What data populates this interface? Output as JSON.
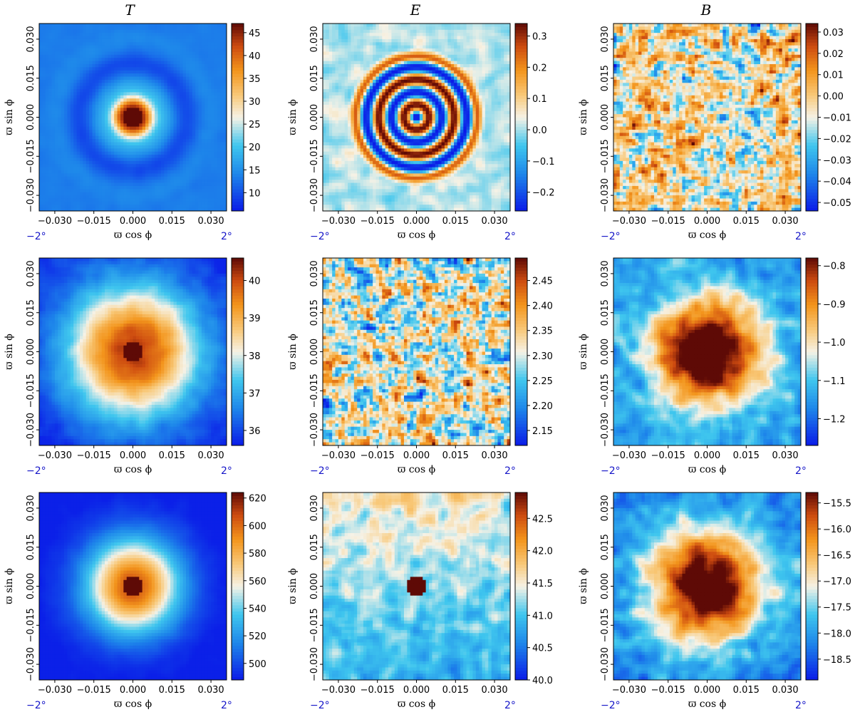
{
  "column_titles": [
    "T",
    "E",
    "B"
  ],
  "chart_data": [
    {
      "type": "heatmap",
      "column": "T",
      "row": 1,
      "pattern": "ring",
      "core_radius": 0.0035,
      "ring_radius": 0.02,
      "xlabel": "ϖ cos ϕ",
      "ylabel": "ϖ sin ϕ",
      "xlim": [
        -0.036,
        0.036
      ],
      "ylim": [
        -0.036,
        0.036
      ],
      "xticks": [
        "−0.030",
        "−0.015",
        "0.000",
        "0.015",
        "0.030"
      ],
      "yticks": [
        "−0.030",
        "−0.015",
        "0.000",
        "0.015",
        "0.030"
      ],
      "deg_left": "−2°",
      "deg_right": "2°",
      "clim": [
        6,
        47
      ],
      "cticks": [
        "10",
        "15",
        "20",
        "25",
        "30",
        "35",
        "40",
        "45"
      ]
    },
    {
      "type": "heatmap",
      "column": "E",
      "row": 1,
      "pattern": "rings",
      "ring_radius": 0.022,
      "xlabel": "ϖ cos ϕ",
      "ylabel": "ϖ sin ϕ",
      "xlim": [
        -0.036,
        0.036
      ],
      "ylim": [
        -0.036,
        0.036
      ],
      "xticks": [
        "−0.030",
        "−0.015",
        "0.000",
        "0.015",
        "0.030"
      ],
      "yticks": [
        "−0.030",
        "−0.015",
        "0.000",
        "0.015",
        "0.030"
      ],
      "deg_left": "−2°",
      "deg_right": "2°",
      "clim": [
        -0.26,
        0.34
      ],
      "cticks": [
        "−0.2",
        "−0.1",
        "0.0",
        "0.1",
        "0.2",
        "0.3"
      ]
    },
    {
      "type": "heatmap",
      "column": "B",
      "row": 1,
      "pattern": "noise",
      "xlabel": "ϖ cos ϕ",
      "ylabel": "ϖ sin ϕ",
      "xlim": [
        -0.036,
        0.036
      ],
      "ylim": [
        -0.036,
        0.036
      ],
      "xticks": [
        "−0.030",
        "−0.015",
        "0.000",
        "0.015",
        "0.030"
      ],
      "yticks": [
        "−0.030",
        "−0.015",
        "0.000",
        "0.015",
        "0.030"
      ],
      "deg_left": "−2°",
      "deg_right": "2°",
      "clim": [
        -0.054,
        0.034
      ],
      "cticks": [
        "−0.05",
        "−0.04",
        "−0.03",
        "−0.02",
        "−0.01",
        "0.00",
        "0.01",
        "0.02",
        "0.03"
      ]
    },
    {
      "type": "heatmap",
      "column": "T",
      "row": 2,
      "pattern": "blob_wide",
      "core_radius": 0.004,
      "xlabel": "ϖ cos ϕ",
      "ylabel": "ϖ sin ϕ",
      "xlim": [
        -0.036,
        0.036
      ],
      "ylim": [
        -0.036,
        0.036
      ],
      "xticks": [
        "−0.030",
        "−0.015",
        "0.000",
        "0.015",
        "0.030"
      ],
      "yticks": [
        "−0.030",
        "−0.015",
        "0.000",
        "0.015",
        "0.030"
      ],
      "deg_left": "−2°",
      "deg_right": "2°",
      "clim": [
        35.6,
        40.6
      ],
      "cticks": [
        "36",
        "37",
        "38",
        "39",
        "40"
      ]
    },
    {
      "type": "heatmap",
      "column": "E",
      "row": 2,
      "pattern": "noise",
      "xlabel": "ϖ cos ϕ",
      "ylabel": "ϖ sin ϕ",
      "xlim": [
        -0.036,
        0.036
      ],
      "ylim": [
        -0.036,
        0.036
      ],
      "xticks": [
        "−0.030",
        "−0.015",
        "0.000",
        "0.015",
        "0.030"
      ],
      "yticks": [
        "−0.030",
        "−0.015",
        "0.000",
        "0.015",
        "0.030"
      ],
      "deg_left": "−2°",
      "deg_right": "2°",
      "clim": [
        2.12,
        2.495
      ],
      "cticks": [
        "2.15",
        "2.20",
        "2.25",
        "2.30",
        "2.35",
        "2.40",
        "2.45"
      ]
    },
    {
      "type": "heatmap",
      "column": "B",
      "row": 2,
      "pattern": "blob_noisy",
      "xlabel": "ϖ cos ϕ",
      "ylabel": "ϖ sin ϕ",
      "xlim": [
        -0.036,
        0.036
      ],
      "ylim": [
        -0.036,
        0.036
      ],
      "xticks": [
        "−0.030",
        "−0.015",
        "0.000",
        "0.015",
        "0.030"
      ],
      "yticks": [
        "−0.030",
        "−0.015",
        "0.000",
        "0.015",
        "0.030"
      ],
      "deg_left": "−2°",
      "deg_right": "2°",
      "clim": [
        -1.27,
        -0.78
      ],
      "cticks": [
        "−1.2",
        "−1.1",
        "−1.0",
        "−0.9",
        "−0.8"
      ]
    },
    {
      "type": "heatmap",
      "column": "T",
      "row": 3,
      "pattern": "blob",
      "core_radius": 0.004,
      "xlabel": "ϖ cos ϕ",
      "ylabel": "ϖ sin ϕ",
      "xlim": [
        -0.036,
        0.036
      ],
      "ylim": [
        -0.036,
        0.036
      ],
      "xticks": [
        "−0.030",
        "−0.015",
        "0.000",
        "0.015",
        "0.030"
      ],
      "yticks": [
        "−0.030",
        "−0.015",
        "0.000",
        "0.015",
        "0.030"
      ],
      "deg_left": "−2°",
      "deg_right": "2°",
      "clim": [
        488,
        624
      ],
      "cticks": [
        "500",
        "520",
        "540",
        "560",
        "580",
        "600",
        "620"
      ]
    },
    {
      "type": "heatmap",
      "column": "E",
      "row": 3,
      "pattern": "spot_noise",
      "core_radius": 0.0035,
      "xlabel": "ϖ cos ϕ",
      "ylabel": "ϖ sin ϕ",
      "xlim": [
        -0.036,
        0.036
      ],
      "ylim": [
        -0.036,
        0.036
      ],
      "xticks": [
        "−0.030",
        "−0.015",
        "0.000",
        "0.015",
        "0.030"
      ],
      "yticks": [
        "−0.030",
        "−0.015",
        "0.000",
        "0.015",
        "0.030"
      ],
      "deg_left": "−2°",
      "deg_right": "2°",
      "clim": [
        40.0,
        42.9
      ],
      "cticks": [
        "40.0",
        "40.5",
        "41.0",
        "41.5",
        "42.0",
        "42.5"
      ]
    },
    {
      "type": "heatmap",
      "column": "B",
      "row": 3,
      "pattern": "blob_noisy",
      "xlabel": "ϖ cos ϕ",
      "ylabel": "ϖ sin ϕ",
      "xlim": [
        -0.036,
        0.036
      ],
      "ylim": [
        -0.036,
        0.036
      ],
      "xticks": [
        "−0.030",
        "−0.015",
        "0.000",
        "0.015",
        "0.030"
      ],
      "yticks": [
        "−0.030",
        "−0.015",
        "0.000",
        "0.015",
        "0.030"
      ],
      "deg_left": "−2°",
      "deg_right": "2°",
      "clim": [
        -18.9,
        -15.3
      ],
      "cticks": [
        "−18.5",
        "−18.0",
        "−17.5",
        "−17.0",
        "−16.5",
        "−16.0",
        "−15.5"
      ]
    }
  ]
}
